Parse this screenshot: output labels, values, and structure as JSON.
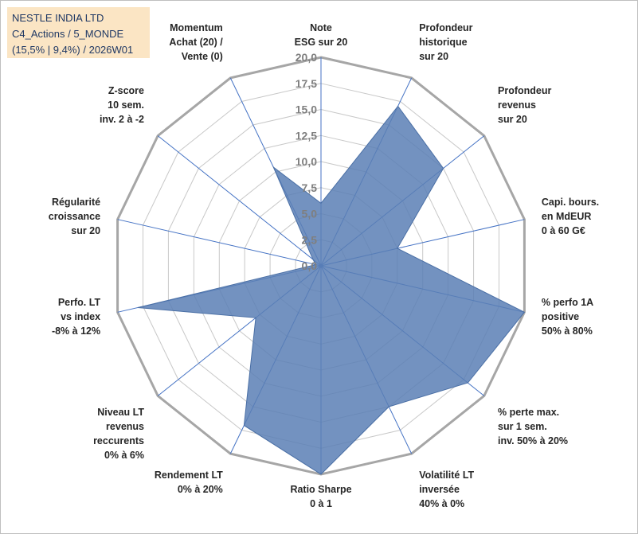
{
  "chart_data": {
    "type": "radar",
    "title_lines": [
      "NESTLE INDIA LTD",
      "C4_Actions / 5_MONDE",
      "(15,5% | 9,4%) / 2026W01"
    ],
    "axes": [
      {
        "lines": [
          "Note",
          "ESG sur 20"
        ]
      },
      {
        "lines": [
          "Profondeur",
          "historique",
          "sur 20"
        ]
      },
      {
        "lines": [
          "Profondeur",
          "revenus",
          "sur 20"
        ]
      },
      {
        "lines": [
          "Capi. bours.",
          "en MdEUR",
          "0 à 60 G€"
        ]
      },
      {
        "lines": [
          "% perfo 1A",
          "positive",
          "50% à 80%"
        ]
      },
      {
        "lines": [
          "% perte max.",
          "sur 1 sem.",
          "inv. 50% à 20%"
        ]
      },
      {
        "lines": [
          "Volatilité LT",
          "inversée",
          "40% à 0%"
        ]
      },
      {
        "lines": [
          "Ratio Sharpe",
          "0 à 1"
        ]
      },
      {
        "lines": [
          "Rendement LT",
          "0% à 20%"
        ]
      },
      {
        "lines": [
          "Niveau LT",
          "revenus",
          "reccurents",
          "0% à 6%"
        ]
      },
      {
        "lines": [
          "Perfo. LT",
          "vs index",
          "-8% à 12%"
        ]
      },
      {
        "lines": [
          "Régularité",
          "croissance",
          "sur 20"
        ]
      },
      {
        "lines": [
          "Z-score",
          "10 sem.",
          "inv. 2 à -2"
        ]
      },
      {
        "lines": [
          "Momentum",
          "Achat (20) /",
          "Vente (0)"
        ]
      }
    ],
    "series": [
      {
        "name": "NESTLE INDIA LTD",
        "values": [
          6.0,
          17.0,
          15.0,
          7.5,
          20.0,
          18.0,
          15.0,
          20.0,
          17.0,
          8.0,
          18.0,
          0.5,
          1.0,
          10.5
        ]
      }
    ],
    "range": [
      0,
      20
    ],
    "ticks": [
      "0,0",
      "2,5",
      "5,0",
      "7,5",
      "10,0",
      "12,5",
      "15,0",
      "17,5",
      "20,0"
    ],
    "colors": {
      "fill": "#5b7fb5",
      "stroke": "#4a6fa5",
      "grid": "#c8c8c8",
      "outer": "#a6a6a6",
      "spoke": "#4472c4"
    }
  }
}
